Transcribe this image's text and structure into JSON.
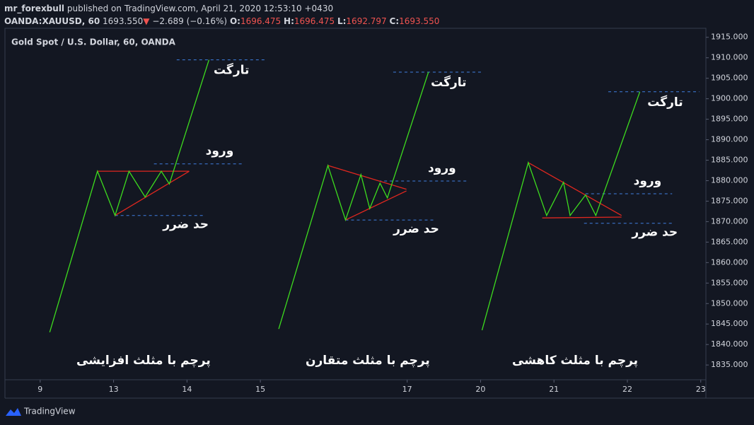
{
  "header": {
    "publisher": "mr_forexbull",
    "published_text": "published on TradingView.com, April 21, 2020 12:53:10 +0430",
    "symbol": "OANDA:XAUUSD, 60",
    "last": "1693.550",
    "arrow": "▼",
    "change": "−2.689 (−0.16%)",
    "o_label": "O:",
    "open": "1696.475",
    "h_label": "H:",
    "high": "1696.475",
    "l_label": "L:",
    "low": "1692.797",
    "c_label": "C:",
    "close": "1693.550"
  },
  "footer": {
    "brand": "TradingView"
  },
  "chart_data": {
    "type": "line",
    "title": "Gold Spot / U.S. Dollar, 60, OANDA",
    "categories": [
      "9",
      "13",
      "14",
      "15",
      null,
      "17",
      "20",
      "21",
      "22",
      "23"
    ],
    "xlim": [
      -0.48,
      9.07
    ],
    "ylim": [
      1831.4,
      1917.2
    ],
    "yticks": [
      {
        "value": 1835,
        "label": "1835.000"
      },
      {
        "value": 1840,
        "label": "1840.000"
      },
      {
        "value": 1845,
        "label": "1845.000"
      },
      {
        "value": 1850,
        "label": "1850.000"
      },
      {
        "value": 1855,
        "label": "1855.000"
      },
      {
        "value": 1860,
        "label": "1860.000"
      },
      {
        "value": 1865,
        "label": "1865.000"
      },
      {
        "value": 1870,
        "label": "1870.000"
      },
      {
        "value": 1875,
        "label": "1875.000"
      },
      {
        "value": 1880,
        "label": "1880.000"
      },
      {
        "value": 1885,
        "label": "1885.000"
      },
      {
        "value": 1890,
        "label": "1890.000"
      },
      {
        "value": 1895,
        "label": "1895.000"
      },
      {
        "value": 1900,
        "label": "1900.000"
      },
      {
        "value": 1905,
        "label": "1905.000"
      },
      {
        "value": 1910,
        "label": "1910.000"
      },
      {
        "value": 1915,
        "label": "1915.000"
      }
    ],
    "flag_color": "#3ddc1e",
    "triangle_color": "#e0271f",
    "level_color": "#3f7fe0",
    "drawings": [
      {
        "title": "پرچم با مثلث افزایشی",
        "target_label": "تارگت",
        "entry_label": "ورود",
        "stop_label": "حد ضرر",
        "flag": {
          "x": [
            0.13,
            0.78,
            1.02,
            1.21,
            1.43,
            1.65,
            1.76,
            2.3
          ],
          "values": [
            1843.0,
            1882.3,
            1871.5,
            1882.3,
            1876.0,
            1882.3,
            1879.2,
            1909.5
          ]
        },
        "triangle": [
          {
            "x": [
              0.78,
              2.03
            ],
            "values": [
              1882.3,
              1882.3
            ]
          },
          {
            "x": [
              1.02,
              2.03
            ],
            "values": [
              1871.5,
              1882.3
            ]
          }
        ],
        "target": {
          "x": [
            1.86,
            3.07
          ],
          "value": 1909.5
        },
        "entry": {
          "x": [
            1.55,
            2.78
          ],
          "value": 1884.1
        },
        "stop": {
          "x": [
            1.02,
            2.23
          ],
          "value": 1871.5
        }
      },
      {
        "title": "پرچم با مثلث متقارن",
        "target_label": "تارگت",
        "entry_label": "ورود",
        "stop_label": "حد ضرر",
        "flag": {
          "x": [
            3.25,
            3.92,
            4.16,
            4.37,
            4.49,
            4.63,
            4.73,
            5.29
          ],
          "values": [
            1843.8,
            1883.7,
            1870.4,
            1881.5,
            1873.2,
            1879.4,
            1875.8,
            1906.5
          ]
        },
        "triangle": [
          {
            "x": [
              3.92,
              4.99
            ],
            "values": [
              1883.7,
              1877.9
            ]
          },
          {
            "x": [
              4.16,
              4.99
            ],
            "values": [
              1870.4,
              1877.5
            ]
          }
        ],
        "target": {
          "x": [
            4.81,
            6.03
          ],
          "value": 1906.5
        },
        "entry": {
          "x": [
            4.61,
            5.81
          ],
          "value": 1879.9
        },
        "stop": {
          "x": [
            4.16,
            5.38
          ],
          "value": 1870.4
        }
      },
      {
        "title": "پرچم با مثلث کاهشی",
        "target_label": "تارگت",
        "entry_label": "ورود",
        "stop_label": "حد ضرر",
        "flag": {
          "x": [
            6.02,
            6.65,
            6.9,
            7.13,
            7.22,
            7.43,
            7.57,
            8.17
          ],
          "values": [
            1843.5,
            1884.4,
            1871.5,
            1879.6,
            1871.5,
            1876.5,
            1871.5,
            1901.7
          ]
        },
        "triangle": [
          {
            "x": [
              6.65,
              7.92
            ],
            "values": [
              1884.4,
              1871.5
            ]
          },
          {
            "x": [
              6.84,
              7.92
            ],
            "values": [
              1870.9,
              1871.1
            ]
          }
        ],
        "target": {
          "x": [
            7.74,
            8.98
          ],
          "value": 1901.7
        },
        "entry": {
          "x": [
            7.43,
            8.61
          ],
          "value": 1876.8
        },
        "stop": {
          "x": [
            7.41,
            8.61
          ],
          "value": 1869.6
        }
      }
    ]
  }
}
